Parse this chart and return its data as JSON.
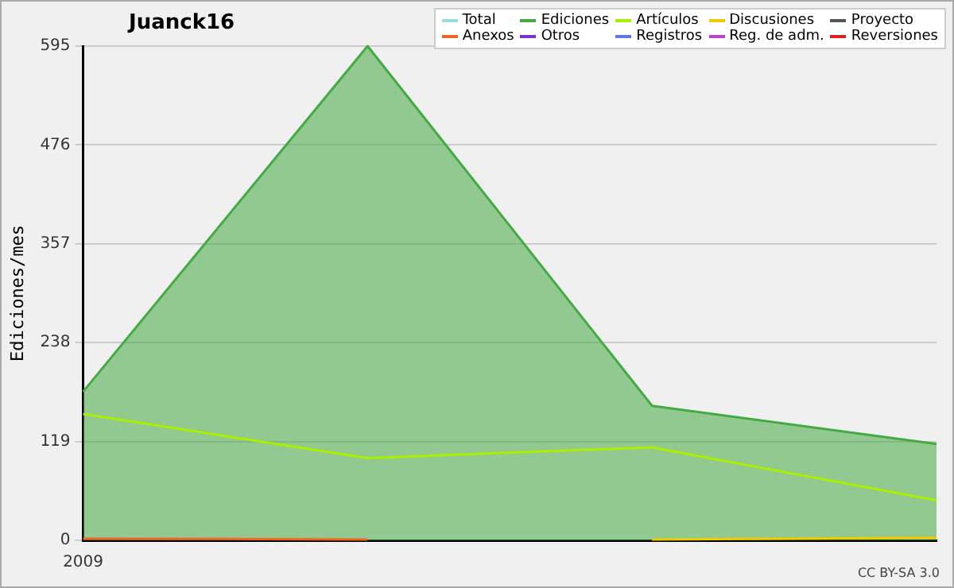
{
  "chart_data": {
    "type": "line",
    "title": "Juanck16",
    "ylabel": "Ediciones/mes",
    "categories": [
      "2009",
      null,
      null,
      null
    ],
    "series": [
      {
        "name": "Total",
        "color": "#99dddd",
        "values": [
          null,
          null,
          null,
          null
        ]
      },
      {
        "name": "Ediciones",
        "color": "#44aa44",
        "type": "area",
        "values": [
          179,
          595,
          162,
          116
        ]
      },
      {
        "name": "Artículos",
        "color": "#aaee00",
        "values": [
          152,
          99,
          112,
          48
        ]
      },
      {
        "name": "Discusiones",
        "color": "#eecc00",
        "values": [
          null,
          null,
          1,
          3
        ]
      },
      {
        "name": "Proyecto",
        "color": "#555555",
        "values": [
          null,
          null,
          null,
          null
        ]
      },
      {
        "name": "Anexos",
        "color": "#ee6622",
        "values": [
          2,
          1,
          null,
          null
        ]
      },
      {
        "name": "Otros",
        "color": "#7733cc",
        "values": [
          null,
          null,
          null,
          null
        ]
      },
      {
        "name": "Registros",
        "color": "#6677ee",
        "values": [
          null,
          null,
          null,
          null
        ]
      },
      {
        "name": "Reg. de adm.",
        "color": "#bb44cc",
        "values": [
          null,
          null,
          null,
          null
        ]
      },
      {
        "name": "Reversiones",
        "color": "#dd2222",
        "values": [
          null,
          null,
          null,
          null
        ]
      }
    ],
    "ylim": [
      0,
      595
    ],
    "yticks": [
      0,
      119,
      238,
      357,
      476,
      595
    ],
    "grid": "y",
    "legend": "top right",
    "marker": "none",
    "annotations": [
      "CC BY-SA 3.0"
    ]
  }
}
